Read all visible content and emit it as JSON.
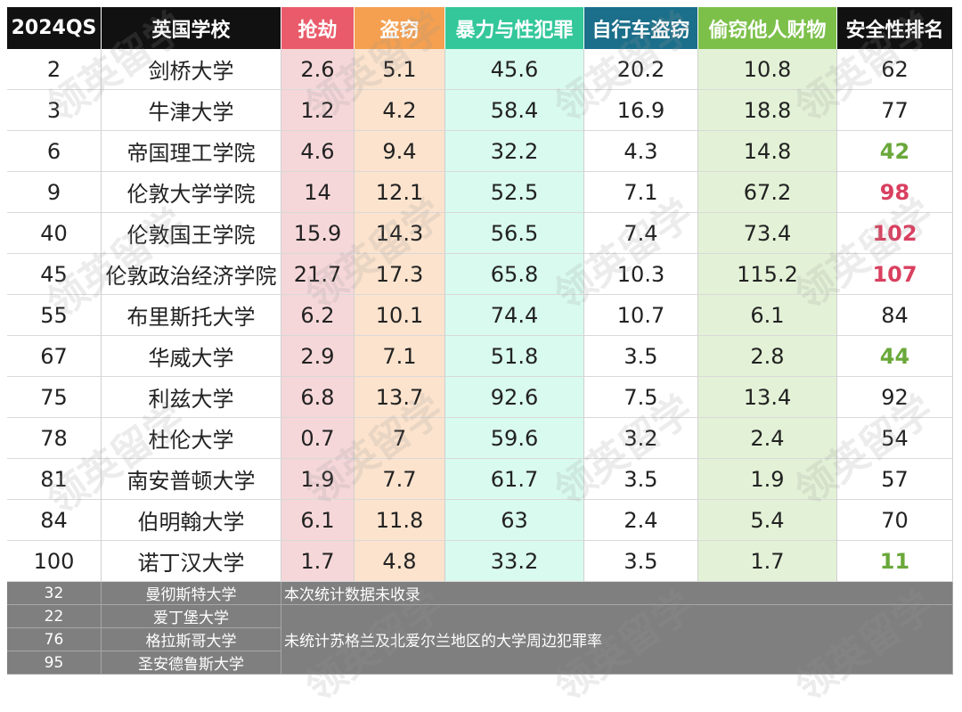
{
  "columns": [
    {
      "label": "2024QS",
      "bg": "#111111",
      "cell_bg": "#ffffff"
    },
    {
      "label": "英国学校",
      "bg": "#111111",
      "cell_bg": "#ffffff"
    },
    {
      "label": "抢劫",
      "bg": "#e95b6a",
      "cell_bg": "#f6d7d9"
    },
    {
      "label": "盗窃",
      "bg": "#f4a050",
      "cell_bg": "#fce3cd"
    },
    {
      "label": "暴力与性犯罪",
      "bg": "#33c79a",
      "cell_bg": "#d9faef"
    },
    {
      "label": "自行车盗窃",
      "bg": "#1b6f8a",
      "cell_bg": "#ffffff"
    },
    {
      "label": "偷窃他人财物",
      "bg": "#7cc04a",
      "cell_bg": "#e3f2d7"
    },
    {
      "label": "安全性排名",
      "bg": "#111111",
      "cell_bg": "#ffffff"
    }
  ],
  "rows": [
    {
      "qs": "2",
      "school": "剑桥大学",
      "robbery": "2.6",
      "theft": "5.1",
      "violence": "45.6",
      "bike": "20.2",
      "personal": "10.8",
      "rank": "62",
      "rank_style": "normal"
    },
    {
      "qs": "3",
      "school": "牛津大学",
      "robbery": "1.2",
      "theft": "4.2",
      "violence": "58.4",
      "bike": "16.9",
      "personal": "18.8",
      "rank": "77",
      "rank_style": "normal"
    },
    {
      "qs": "6",
      "school": "帝国理工学院",
      "robbery": "4.6",
      "theft": "9.4",
      "violence": "32.2",
      "bike": "4.3",
      "personal": "14.8",
      "rank": "42",
      "rank_style": "good"
    },
    {
      "qs": "9",
      "school": "伦敦大学学院",
      "robbery": "14",
      "theft": "12.1",
      "violence": "52.5",
      "bike": "7.1",
      "personal": "67.2",
      "rank": "98",
      "rank_style": "bad"
    },
    {
      "qs": "40",
      "school": "伦敦国王学院",
      "robbery": "15.9",
      "theft": "14.3",
      "violence": "56.5",
      "bike": "7.4",
      "personal": "73.4",
      "rank": "102",
      "rank_style": "bad"
    },
    {
      "qs": "45",
      "school": "伦敦政治经济学院",
      "robbery": "21.7",
      "theft": "17.3",
      "violence": "65.8",
      "bike": "10.3",
      "personal": "115.2",
      "rank": "107",
      "rank_style": "bad"
    },
    {
      "qs": "55",
      "school": "布里斯托大学",
      "robbery": "6.2",
      "theft": "10.1",
      "violence": "74.4",
      "bike": "10.7",
      "personal": "6.1",
      "rank": "84",
      "rank_style": "normal"
    },
    {
      "qs": "67",
      "school": "华威大学",
      "robbery": "2.9",
      "theft": "7.1",
      "violence": "51.8",
      "bike": "3.5",
      "personal": "2.8",
      "rank": "44",
      "rank_style": "good"
    },
    {
      "qs": "75",
      "school": "利兹大学",
      "robbery": "6.8",
      "theft": "13.7",
      "violence": "92.6",
      "bike": "7.5",
      "personal": "13.4",
      "rank": "92",
      "rank_style": "normal"
    },
    {
      "qs": "78",
      "school": "杜伦大学",
      "robbery": "0.7",
      "theft": "7",
      "violence": "59.6",
      "bike": "3.2",
      "personal": "2.4",
      "rank": "54",
      "rank_style": "normal"
    },
    {
      "qs": "81",
      "school": "南安普顿大学",
      "robbery": "1.9",
      "theft": "7.7",
      "violence": "61.7",
      "bike": "3.5",
      "personal": "1.9",
      "rank": "57",
      "rank_style": "normal"
    },
    {
      "qs": "84",
      "school": "伯明翰大学",
      "robbery": "6.1",
      "theft": "11.8",
      "violence": "63",
      "bike": "2.4",
      "personal": "5.4",
      "rank": "70",
      "rank_style": "normal"
    },
    {
      "qs": "100",
      "school": "诺丁汉大学",
      "robbery": "1.7",
      "theft": "4.8",
      "violence": "33.2",
      "bike": "3.5",
      "personal": "1.7",
      "rank": "11",
      "rank_style": "good"
    }
  ],
  "excluded": [
    {
      "qs": "32",
      "school": "曼彻斯特大学"
    },
    {
      "qs": "22",
      "school": "爱丁堡大学"
    },
    {
      "qs": "76",
      "school": "格拉斯哥大学"
    },
    {
      "qs": "95",
      "school": "圣安德鲁斯大学"
    }
  ],
  "notes": {
    "not_included": "本次统计数据未收录",
    "scotland_ni": "未统计苏格兰及北爱尔兰地区的大学周边犯罪率"
  },
  "watermark": "领英留学",
  "rank_colors": {
    "good": "#6aa83a",
    "bad": "#d94060"
  }
}
